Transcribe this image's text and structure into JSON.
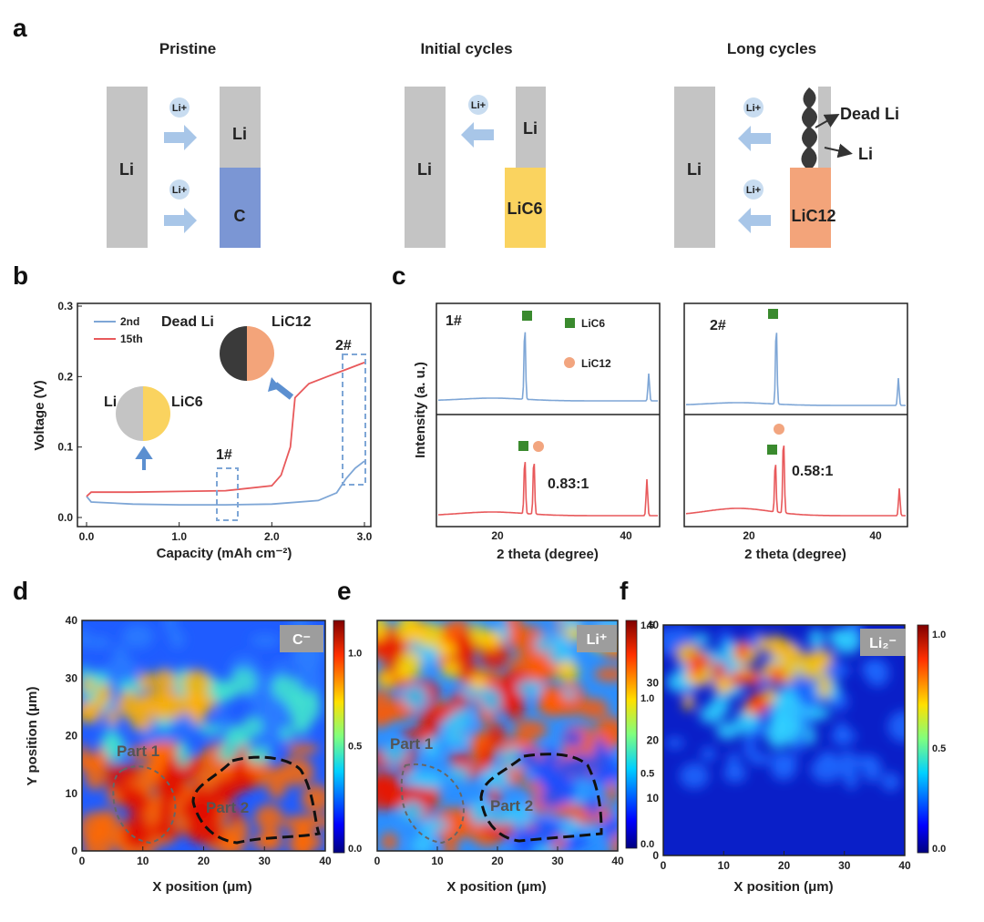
{
  "panel_labels": {
    "a": "a",
    "b": "b",
    "c": "c",
    "d": "d",
    "e": "e",
    "f": "f"
  },
  "panel_a": {
    "stages": [
      {
        "title": "Pristine",
        "left": "Li",
        "top": "Li",
        "bottom": "C",
        "ion": "Li+",
        "bottom_color": "#7b96d4"
      },
      {
        "title": "Initial cycles",
        "left": "Li",
        "top": "Li",
        "bottom": "LiC6",
        "ion": "Li+",
        "bottom_color": "#fad35f"
      },
      {
        "title": "Long cycles",
        "left": "Li",
        "top": "Li",
        "bottom": "LiC12",
        "ion": "Li+",
        "dead": "Dead Li",
        "bottom_color": "#f3a47a"
      }
    ]
  },
  "panel_b": {
    "ylabel": "Voltage (V)",
    "xlabel": "Capacity (mAh cm⁻²)",
    "xticks": [
      "0.0",
      "1.0",
      "2.0",
      "3.0"
    ],
    "yticks": [
      "0.0",
      "0.1",
      "0.2",
      "0.3"
    ],
    "legend": [
      {
        "name": "2nd",
        "color": "#7ea6d6"
      },
      {
        "name": "15th",
        "color": "#e8595b"
      }
    ],
    "box1": "1#",
    "box2": "2#",
    "pie1": {
      "left": "Li",
      "right": "LiC6"
    },
    "pie2": {
      "left": "Dead Li",
      "right": "LiC12"
    }
  },
  "panel_c": {
    "ylabel": "Intensity (a. u.)",
    "xlabel": "2 theta (degree)",
    "xticks": [
      "20",
      "40"
    ],
    "sample1": "1#",
    "sample2": "2#",
    "ratio1": "0.83:1",
    "ratio2": "0.58:1",
    "legend": [
      {
        "name": "LiC6",
        "color": "#3a8a2e"
      },
      {
        "name": "LiC12",
        "color": "#f2a57f"
      }
    ]
  },
  "maps": [
    {
      "label": "C⁻",
      "xlabel": "X position (μm)",
      "ylabel": "Y position (μm)",
      "cbar": [
        "0.0",
        "0.5",
        "1.0"
      ],
      "parts": [
        "Part 1",
        "Part 2"
      ]
    },
    {
      "label": "Li⁺",
      "xlabel": "X position (μm)",
      "cbar": [
        "0.0",
        "0.5",
        "1.0",
        "1.5"
      ],
      "parts": [
        "Part 1",
        "Part 2"
      ]
    },
    {
      "label": "Li₂⁻",
      "xlabel": "X position (μm)",
      "cbar": [
        "0.0",
        "0.5",
        "1.0"
      ]
    }
  ],
  "map_ticks": [
    "0",
    "10",
    "20",
    "30",
    "40"
  ],
  "colors": {
    "li_gray": "#c4c4c4",
    "arrow_blue": "#a8c6e8",
    "curve_blue": "#7ea6d6",
    "curve_red": "#e8595b"
  },
  "chart_data": [
    {
      "type": "line",
      "xlabel": "Capacity (mAh cm⁻²)",
      "ylabel": "Voltage (V)",
      "xlim": [
        0,
        3
      ],
      "ylim": [
        0,
        0.3
      ],
      "series": [
        {
          "name": "2nd",
          "x": [
            0.0,
            0.05,
            0.5,
            1.0,
            1.5,
            2.0,
            2.5,
            2.7,
            2.8,
            2.9,
            3.0
          ],
          "values": [
            0.03,
            0.022,
            0.019,
            0.018,
            0.018,
            0.019,
            0.024,
            0.035,
            0.055,
            0.07,
            0.08
          ]
        },
        {
          "name": "15th",
          "x": [
            0.0,
            0.05,
            0.5,
            1.0,
            1.5,
            2.0,
            2.1,
            2.2,
            2.25,
            2.4,
            2.6,
            2.8,
            3.0
          ],
          "values": [
            0.03,
            0.036,
            0.036,
            0.037,
            0.038,
            0.045,
            0.06,
            0.1,
            0.17,
            0.19,
            0.2,
            0.21,
            0.22
          ]
        }
      ]
    },
    {
      "type": "line",
      "xlabel": "2 theta (degree)",
      "ylabel": "Intensity (a. u.)",
      "panels": [
        "1#",
        "2#"
      ]
    }
  ]
}
